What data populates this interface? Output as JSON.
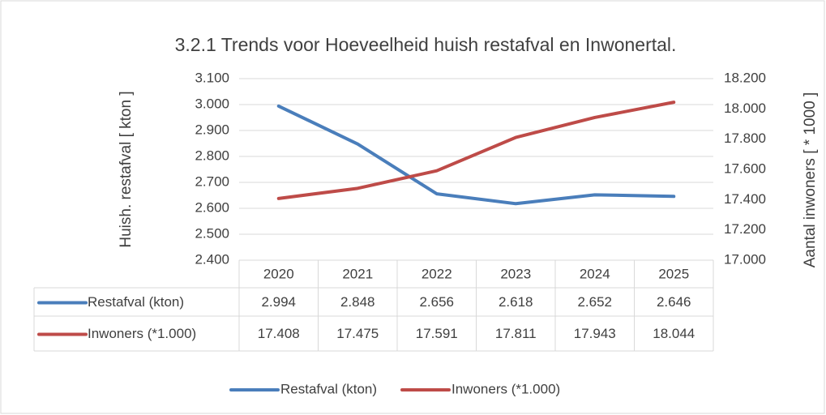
{
  "chart_data": {
    "type": "line",
    "title": "3.2.1 Trends voor Hoeveelheid huish restafval en Inwonertal.",
    "y_label": "Huish. restafval [ kton ]",
    "y2_label": "Aantal inwoners [ * 1000 ]",
    "categories": [
      "2020",
      "2021",
      "2022",
      "2023",
      "2024",
      "2025"
    ],
    "series": [
      {
        "name": "Restafval (kton)",
        "color": "#4a7ebb",
        "values": [
          2994,
          2848,
          2656,
          2618,
          2652,
          2646
        ],
        "value_labels": [
          "2.994",
          "2.848",
          "2.656",
          "2.618",
          "2.652",
          "2.646"
        ]
      },
      {
        "name": "Inwoners (*1.000)",
        "color": "#be4b48",
        "axis": "y2",
        "values": [
          17408,
          17475,
          17591,
          17811,
          17943,
          18044
        ],
        "value_labels": [
          "17.408",
          "17.475",
          "17.591",
          "17.811",
          "17.943",
          "18.044"
        ]
      }
    ],
    "ylim": [
      2400,
      3100
    ],
    "yticks": [
      {
        "value": 2400,
        "label": "2.400"
      },
      {
        "value": 2500,
        "label": "2.500"
      },
      {
        "value": 2600,
        "label": "2.600"
      },
      {
        "value": 2700,
        "label": "2.700"
      },
      {
        "value": 2800,
        "label": "2.800"
      },
      {
        "value": 2900,
        "label": "2.900"
      },
      {
        "value": 3000,
        "label": "3.000"
      },
      {
        "value": 3100,
        "label": "3.100"
      }
    ],
    "y2lim": [
      17000,
      18200
    ],
    "y2ticks": [
      {
        "value": 17000,
        "label": "17.000"
      },
      {
        "value": 17200,
        "label": "17.200"
      },
      {
        "value": 17400,
        "label": "17.400"
      },
      {
        "value": 17600,
        "label": "17.600"
      },
      {
        "value": 17800,
        "label": "17.800"
      },
      {
        "value": 18000,
        "label": "18.000"
      },
      {
        "value": 18200,
        "label": "18.200"
      }
    ],
    "grid": true,
    "legend": "bottom",
    "data_table": true
  }
}
